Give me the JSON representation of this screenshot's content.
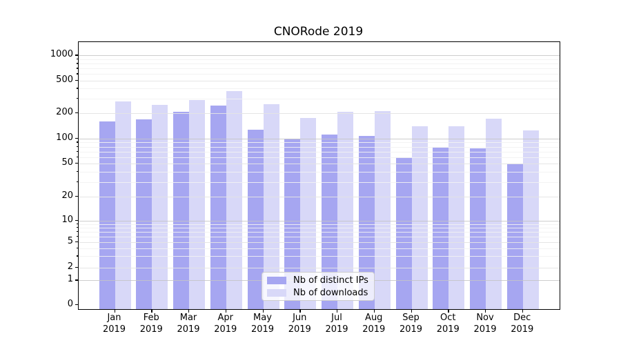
{
  "title": "CNORode 2019",
  "colors": {
    "ips": "#a6a6f1",
    "downloads": "#d8d8f8",
    "grid_power10": "#c4c4c4",
    "grid_labeled": "#e4e4e4",
    "grid_minor": "#f2f2f2",
    "axis": "#000000"
  },
  "legend": {
    "items": [
      {
        "label": "Nb of distinct IPs",
        "series": "ips"
      },
      {
        "label": "Nb of downloads",
        "series": "downloads"
      }
    ]
  },
  "y_axis": {
    "tick_labels": [
      "0",
      "1",
      "2",
      "5",
      "10",
      "20",
      "50",
      "100",
      "200",
      "500",
      "1000"
    ],
    "tick_values": [
      0,
      1,
      2,
      5,
      10,
      20,
      50,
      100,
      200,
      500,
      1000
    ],
    "minor_values": [
      3,
      4,
      6,
      7,
      8,
      9,
      30,
      40,
      60,
      70,
      80,
      90,
      300,
      400,
      600,
      700,
      800,
      900
    ]
  },
  "x_axis": {
    "months": [
      "Jan",
      "Feb",
      "Mar",
      "Apr",
      "May",
      "Jun",
      "Jul",
      "Aug",
      "Sep",
      "Oct",
      "Nov",
      "Dec"
    ],
    "year": "2019"
  },
  "chart_data": {
    "type": "bar",
    "title": "CNORode 2019",
    "xlabel": "",
    "ylabel": "",
    "scale": "symlog",
    "ylim": [
      0,
      1450
    ],
    "grid": "on",
    "legend_position": "lower center",
    "categories": [
      "Jan 2019",
      "Feb 2019",
      "Mar 2019",
      "Apr 2019",
      "May 2019",
      "Jun 2019",
      "Jul 2019",
      "Aug 2019",
      "Sep 2019",
      "Oct 2019",
      "Nov 2019",
      "Dec 2019"
    ],
    "series": [
      {
        "name": "Nb of distinct IPs",
        "values": [
          160,
          168,
          205,
          247,
          128,
          100,
          112,
          108,
          59,
          78,
          76,
          50
        ]
      },
      {
        "name": "Nb of downloads",
        "values": [
          279,
          252,
          290,
          372,
          257,
          175,
          207,
          211,
          139,
          141,
          170,
          124
        ]
      }
    ]
  }
}
